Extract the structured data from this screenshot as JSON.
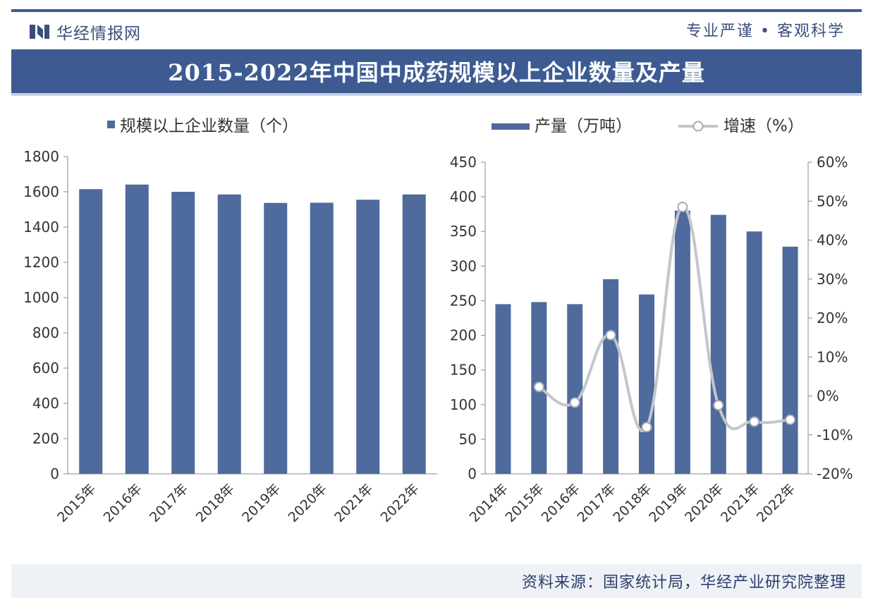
{
  "header": {
    "logo_text": "华经情报网",
    "slogan": "专业严谨 • 客观科学",
    "title": "2015-2022年中国中成药规模以上企业数量及产量"
  },
  "footer": {
    "source": "资料来源：国家统计局，华经产业研究院整理"
  },
  "colors": {
    "bar": "#4f6a9c",
    "line": "#c3c6cc",
    "banner": "#3d5b92",
    "text": "#333333"
  },
  "chart_data": [
    {
      "type": "bar",
      "legend": [
        "规模以上企业数量（个）"
      ],
      "legend_position": "top",
      "categories": [
        "2015年",
        "2016年",
        "2017年",
        "2018年",
        "2019年",
        "2020年",
        "2021年",
        "2022年"
      ],
      "series": [
        {
          "name": "规模以上企业数量（个）",
          "values": [
            1615,
            1641,
            1600,
            1585,
            1537,
            1538,
            1555,
            1585
          ]
        }
      ],
      "ylim": [
        0,
        1800
      ],
      "yticks": [
        "0",
        "200",
        "400",
        "600",
        "800",
        "1000",
        "1200",
        "1400",
        "1600",
        "1800"
      ],
      "grid": false
    },
    {
      "type": "bar+line",
      "legend": [
        "产量（万吨）",
        "增速（%）"
      ],
      "legend_position": "top",
      "categories": [
        "2014年",
        "2015年",
        "2016年",
        "2017年",
        "2018年",
        "2019年",
        "2020年",
        "2021年",
        "2022年"
      ],
      "series": [
        {
          "name": "产量（万吨）",
          "type": "bar",
          "axis": "left",
          "values": [
            245,
            248,
            245,
            281,
            259,
            380,
            374,
            350,
            328
          ]
        },
        {
          "name": "增速（%）",
          "type": "line",
          "axis": "right",
          "smooth": true,
          "values": [
            null,
            2.3,
            -1.7,
            15.6,
            -8.0,
            48.5,
            -2.4,
            -6.6,
            -6.1
          ]
        }
      ],
      "ylim_left": [
        0,
        450
      ],
      "yticks_left": [
        "0",
        "50",
        "100",
        "150",
        "200",
        "250",
        "300",
        "350",
        "400",
        "450"
      ],
      "ylim_right": [
        -20,
        60
      ],
      "yticks_right": [
        "-20%",
        "-10%",
        "0%",
        "10%",
        "20%",
        "30%",
        "40%",
        "50%",
        "60%"
      ],
      "grid": false
    }
  ]
}
